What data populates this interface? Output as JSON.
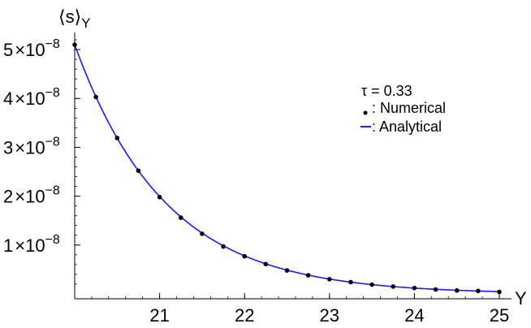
{
  "chart_data": {
    "type": "scatter",
    "ylabel": "⟨s⟩",
    "ylabel_sub": "Y",
    "xlabel": "Y",
    "xlim": [
      20,
      25
    ],
    "ylim": [
      -1e-09,
      5.35e-08
    ],
    "x_ticks": [
      21,
      22,
      23,
      24,
      25
    ],
    "x_tick_labels": [
      "21",
      "22",
      "23",
      "24",
      "25"
    ],
    "y_ticks": [
      1e-08,
      2e-08,
      3e-08,
      4e-08,
      5e-08
    ],
    "y_tick_labels": [
      {
        "mant": "1",
        "times": "×10",
        "exp": "−8"
      },
      {
        "mant": "2",
        "times": "×10",
        "exp": "−8"
      },
      {
        "mant": "3",
        "times": "×10",
        "exp": "−8"
      },
      {
        "mant": "4",
        "times": "×10",
        "exp": "−8"
      },
      {
        "mant": "5",
        "times": "×10",
        "exp": "−8"
      }
    ],
    "grid": false,
    "legend_position": "top-right",
    "legend": {
      "param": "τ = 0.33",
      "numerical": ": Numerical",
      "analytical": ": Analytical"
    },
    "colors": {
      "points": "#000000",
      "curve": "#1a1aff",
      "axes": "#000000"
    },
    "series": [
      {
        "name": "Numerical",
        "x": [
          20,
          20.25,
          20.5,
          20.75,
          21,
          21.25,
          21.5,
          21.75,
          22,
          22.25,
          22.5,
          22.75,
          23,
          23.25,
          23.5,
          23.75,
          24,
          24.25,
          24.5,
          24.75,
          25
        ],
        "values": [
          5.1e-08,
          4.03e-08,
          3.19e-08,
          2.52e-08,
          1.98e-08,
          1.56e-08,
          1.23e-08,
          9.7e-09,
          7.7e-09,
          6.1e-09,
          4.8e-09,
          3.8e-09,
          3e-09,
          2.4e-09,
          1.9e-09,
          1.5e-09,
          1.2e-09,
          9e-10,
          7e-10,
          6e-10,
          4e-10
        ]
      },
      {
        "name": "Analytical",
        "model": "exponential",
        "x_start": 20,
        "y_start": 5.1e-08,
        "decay_rate": 0.94
      }
    ]
  }
}
